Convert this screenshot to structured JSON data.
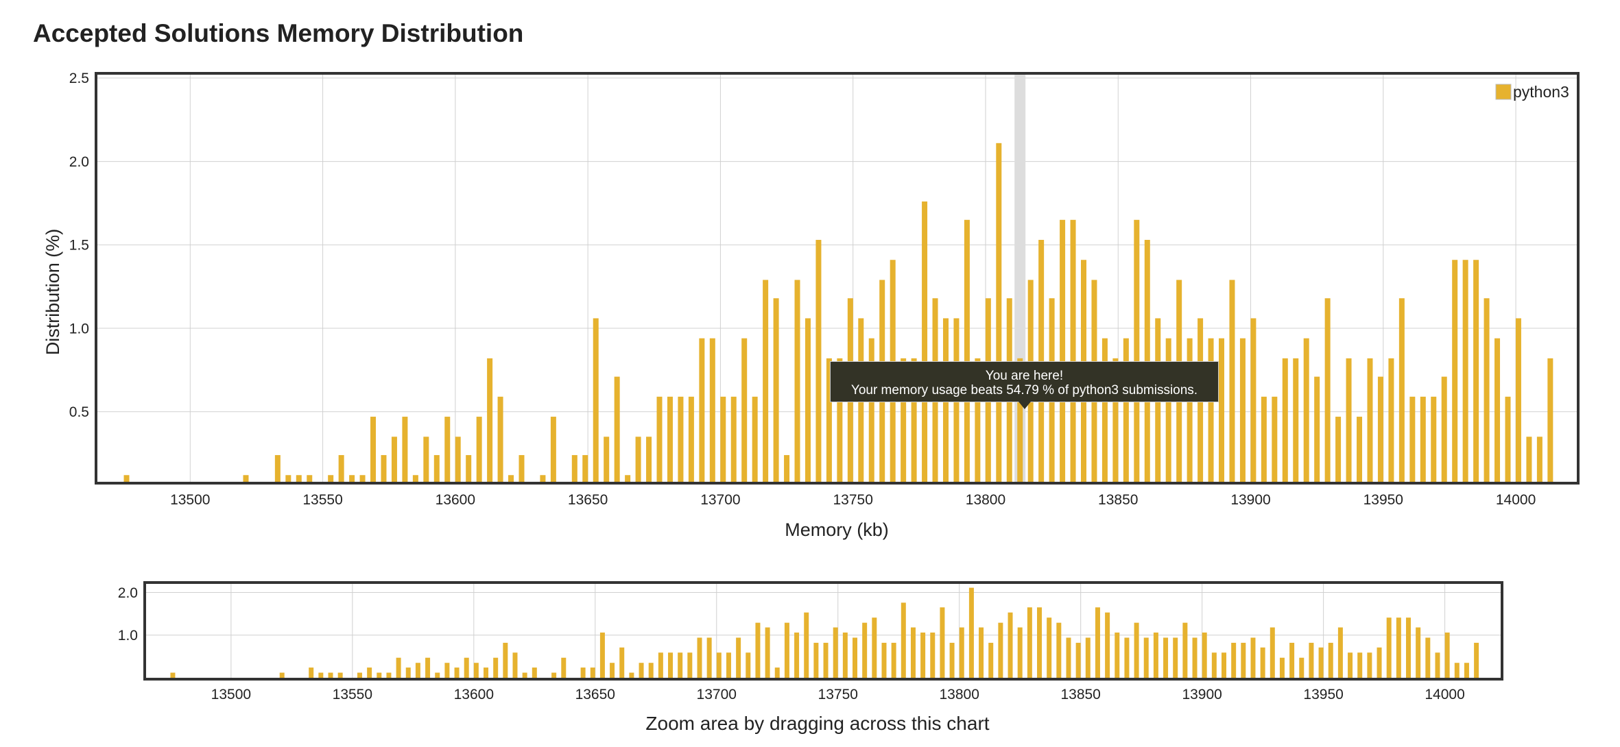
{
  "page": {
    "title": "Accepted Solutions Memory Distribution"
  },
  "colors": {
    "bar": "#E6B22E",
    "marker": "#dddddd",
    "grid": "#d0d0d0",
    "frame": "#333333",
    "tooltip_bg": "#333326"
  },
  "tooltip": {
    "line1": "You are here!",
    "line2": "Your memory usage beats 54.79 % of python3 submissions.",
    "marker_x": 13813
  },
  "chart_data": [
    {
      "type": "bar",
      "id": "main",
      "xlabel": "Memory (kb)",
      "ylabel": "Distribution (%)",
      "xlim": [
        13465,
        14023
      ],
      "ylim": [
        0.08,
        2.52
      ],
      "xticks": [
        13500,
        13550,
        13600,
        13650,
        13700,
        13750,
        13800,
        13850,
        13900,
        13950,
        14000
      ],
      "yticks": [
        0.5,
        1.0,
        1.5,
        2.0,
        2.5
      ],
      "grid": true,
      "legend": "top-right",
      "series": [
        {
          "name": "python3",
          "points": [
            [
              13476,
              0.12
            ],
            [
              13521,
              0.12
            ],
            [
              13533,
              0.24
            ],
            [
              13537,
              0.12
            ],
            [
              13541,
              0.12
            ],
            [
              13545,
              0.12
            ],
            [
              13553,
              0.12
            ],
            [
              13557,
              0.24
            ],
            [
              13561,
              0.12
            ],
            [
              13565,
              0.12
            ],
            [
              13569,
              0.47
            ],
            [
              13573,
              0.24
            ],
            [
              13577,
              0.35
            ],
            [
              13581,
              0.47
            ],
            [
              13585,
              0.12
            ],
            [
              13589,
              0.35
            ],
            [
              13593,
              0.24
            ],
            [
              13597,
              0.47
            ],
            [
              13601,
              0.35
            ],
            [
              13605,
              0.24
            ],
            [
              13609,
              0.47
            ],
            [
              13613,
              0.82
            ],
            [
              13617,
              0.59
            ],
            [
              13621,
              0.12
            ],
            [
              13625,
              0.24
            ],
            [
              13633,
              0.12
            ],
            [
              13637,
              0.47
            ],
            [
              13645,
              0.24
            ],
            [
              13649,
              0.24
            ],
            [
              13653,
              1.06
            ],
            [
              13657,
              0.35
            ],
            [
              13661,
              0.71
            ],
            [
              13665,
              0.12
            ],
            [
              13669,
              0.35
            ],
            [
              13673,
              0.35
            ],
            [
              13677,
              0.59
            ],
            [
              13681,
              0.59
            ],
            [
              13685,
              0.59
            ],
            [
              13689,
              0.59
            ],
            [
              13693,
              0.94
            ],
            [
              13697,
              0.94
            ],
            [
              13701,
              0.59
            ],
            [
              13705,
              0.59
            ],
            [
              13709,
              0.94
            ],
            [
              13713,
              0.59
            ],
            [
              13717,
              1.29
            ],
            [
              13721,
              1.18
            ],
            [
              13725,
              0.24
            ],
            [
              13729,
              1.29
            ],
            [
              13733,
              1.06
            ],
            [
              13737,
              1.53
            ],
            [
              13741,
              0.82
            ],
            [
              13745,
              0.82
            ],
            [
              13749,
              1.18
            ],
            [
              13753,
              1.06
            ],
            [
              13757,
              0.94
            ],
            [
              13761,
              1.29
            ],
            [
              13765,
              1.41
            ],
            [
              13769,
              0.82
            ],
            [
              13773,
              0.82
            ],
            [
              13777,
              1.76
            ],
            [
              13781,
              1.18
            ],
            [
              13785,
              1.06
            ],
            [
              13789,
              1.06
            ],
            [
              13793,
              1.65
            ],
            [
              13797,
              0.82
            ],
            [
              13801,
              1.18
            ],
            [
              13805,
              2.11
            ],
            [
              13809,
              1.18
            ],
            [
              13813,
              0.82
            ],
            [
              13817,
              1.29
            ],
            [
              13821,
              1.53
            ],
            [
              13825,
              1.18
            ],
            [
              13829,
              1.65
            ],
            [
              13833,
              1.65
            ],
            [
              13837,
              1.41
            ],
            [
              13841,
              1.29
            ],
            [
              13845,
              0.94
            ],
            [
              13849,
              0.82
            ],
            [
              13853,
              0.94
            ],
            [
              13857,
              1.65
            ],
            [
              13861,
              1.53
            ],
            [
              13865,
              1.06
            ],
            [
              13869,
              0.94
            ],
            [
              13873,
              1.29
            ],
            [
              13877,
              0.94
            ],
            [
              13881,
              1.06
            ],
            [
              13885,
              0.94
            ],
            [
              13889,
              0.94
            ],
            [
              13893,
              1.29
            ],
            [
              13897,
              0.94
            ],
            [
              13901,
              1.06
            ],
            [
              13905,
              0.59
            ],
            [
              13909,
              0.59
            ],
            [
              13913,
              0.82
            ],
            [
              13917,
              0.82
            ],
            [
              13921,
              0.94
            ],
            [
              13925,
              0.71
            ],
            [
              13929,
              1.18
            ],
            [
              13933,
              0.47
            ],
            [
              13937,
              0.82
            ],
            [
              13941,
              0.47
            ],
            [
              13945,
              0.82
            ],
            [
              13949,
              0.71
            ],
            [
              13953,
              0.82
            ],
            [
              13957,
              1.18
            ],
            [
              13961,
              0.59
            ],
            [
              13965,
              0.59
            ],
            [
              13969,
              0.59
            ],
            [
              13973,
              0.71
            ],
            [
              13977,
              1.41
            ],
            [
              13981,
              1.41
            ],
            [
              13985,
              1.41
            ],
            [
              13989,
              1.18
            ],
            [
              13993,
              0.94
            ],
            [
              13997,
              0.59
            ],
            [
              14001,
              1.06
            ],
            [
              14005,
              0.35
            ],
            [
              14009,
              0.35
            ],
            [
              14013,
              0.82
            ]
          ]
        }
      ]
    },
    {
      "type": "bar",
      "id": "navigator",
      "xlabel": "Zoom area by dragging across this chart",
      "xlim": [
        13465,
        14023
      ],
      "ylim": [
        0,
        2.2
      ],
      "xticks": [
        13500,
        13550,
        13600,
        13650,
        13700,
        13750,
        13800,
        13850,
        13900,
        13950,
        14000
      ],
      "yticks": [
        1.0,
        2.0
      ],
      "grid": true,
      "series_ref": "main"
    }
  ]
}
